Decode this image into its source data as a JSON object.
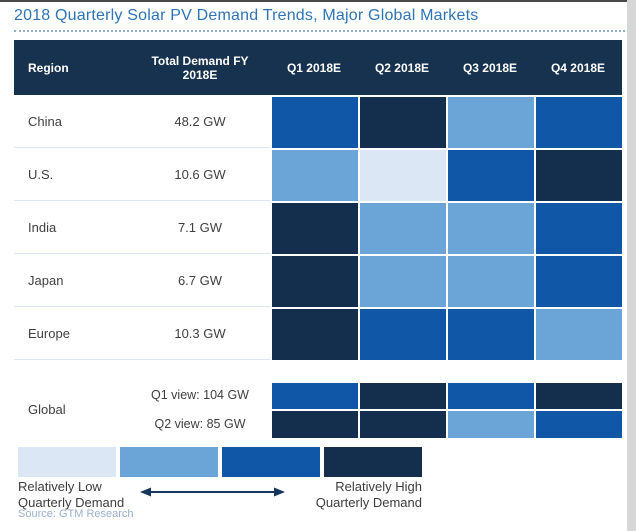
{
  "title": "2018 Quarterly Solar PV Demand Trends, Major Global Markets",
  "header": {
    "region": "Region",
    "total": "Total Demand FY 2018E",
    "quarters": [
      "Q1 2018E",
      "Q2 2018E",
      "Q3 2018E",
      "Q4 2018E"
    ]
  },
  "chart_data": {
    "type": "heatmap",
    "title": "2018 Quarterly Solar PV Demand Trends, Major Global Markets",
    "columns": [
      "Q1 2018E",
      "Q2 2018E",
      "Q3 2018E",
      "Q4 2018E"
    ],
    "scale_note": "Cell shading encodes relative quarterly demand: 1 = relatively low, 4 = relatively high",
    "rows": [
      {
        "region": "China",
        "total": "48.2 GW",
        "levels": [
          3,
          4,
          2,
          3
        ]
      },
      {
        "region": "U.S.",
        "total": "10.6 GW",
        "levels": [
          2,
          1,
          3,
          4
        ]
      },
      {
        "region": "India",
        "total": "7.1 GW",
        "levels": [
          4,
          2,
          2,
          3
        ]
      },
      {
        "region": "Japan",
        "total": "6.7 GW",
        "levels": [
          4,
          2,
          2,
          3
        ]
      },
      {
        "region": "Europe",
        "total": "10.3 GW",
        "levels": [
          4,
          3,
          3,
          2
        ]
      }
    ],
    "global": {
      "region": "Global",
      "rows": [
        {
          "label": "Q1 view: 104 GW",
          "levels": [
            3,
            4,
            3,
            4
          ]
        },
        {
          "label": "Q2 view: 85 GW",
          "levels": [
            4,
            4,
            2,
            3
          ]
        }
      ]
    },
    "legend_low": "Relatively Low Quarterly Demand",
    "legend_high": "Relatively High Quarterly Demand"
  },
  "legend": {
    "low_line1": "Relatively Low",
    "low_line2": "Quarterly Demand",
    "high_line1": "Relatively High",
    "high_line2": "Quarterly Demand"
  },
  "source": "Source: GTM Research",
  "colors": {
    "heat_scale": [
      "#DBE7F4",
      "#6BA4D6",
      "#1057A7",
      "#132F4D"
    ],
    "header_bg": "#16324F",
    "title_text": "#2E74B5",
    "arrow": "#17365D"
  }
}
